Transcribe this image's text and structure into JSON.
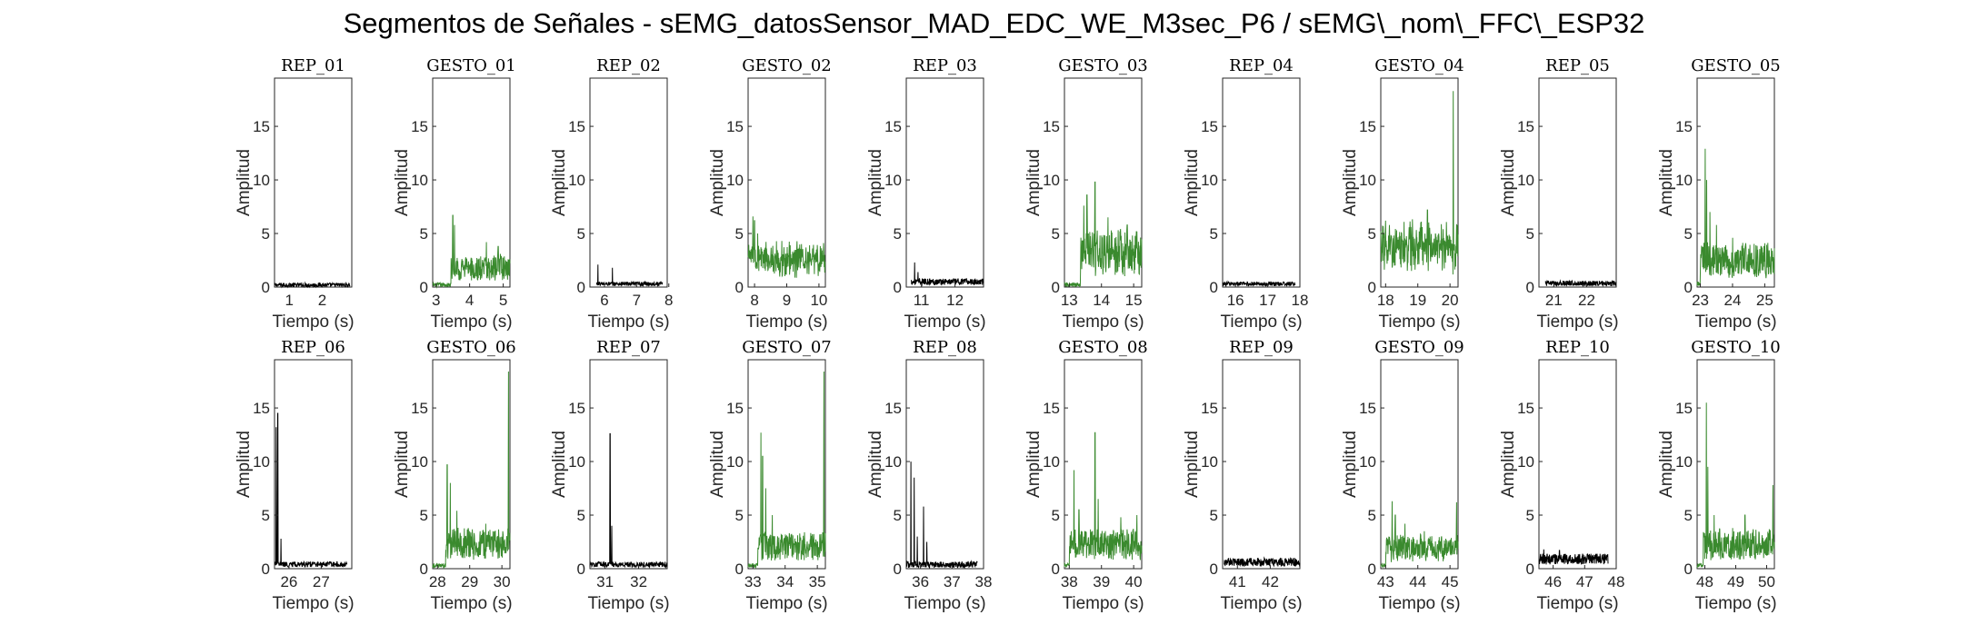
{
  "figure": {
    "suptitle": "Segmentos de Señales - sEMG_datosSensor_MAD_EDC_WE_M3sec_P6 / sEMG\\_nom\\_FFC\\_ESP32"
  },
  "colors": {
    "rep": "#000000",
    "gesto": "#3a8a2e",
    "axes": "#262626"
  },
  "chart_data": [
    {
      "type": "line",
      "title": "REP_01",
      "xlabel": "Tiempo (s)",
      "ylabel": "Amplitud",
      "xlim": [
        0.55,
        2.9
      ],
      "ylim": [
        0,
        19.5
      ],
      "xticks": [
        1,
        2
      ],
      "yticks": [
        0,
        5,
        10,
        15
      ],
      "color": "#000000",
      "x_range": [
        0.55,
        2.85
      ],
      "baseline": 0.2,
      "noise": 0.2,
      "spikes": []
    },
    {
      "type": "line",
      "title": "GESTO_01",
      "xlabel": "Tiempo (s)",
      "ylabel": "Amplitud",
      "xlim": [
        2.9,
        5.2
      ],
      "ylim": [
        0,
        19.5
      ],
      "xticks": [
        3,
        4,
        5
      ],
      "yticks": [
        0,
        5,
        10,
        15
      ],
      "color": "#3a8a2e",
      "x_range": [
        2.9,
        5.2
      ],
      "baseline": 0.2,
      "noise": 0.2,
      "active_from": 3.45,
      "active_level": 1.6,
      "spikes": [
        [
          3.5,
          6.7
        ],
        [
          3.55,
          5.8
        ],
        [
          4.5,
          4.2
        ],
        [
          4.85,
          3.8
        ]
      ]
    },
    {
      "type": "line",
      "title": "REP_02",
      "xlabel": "Tiempo (s)",
      "ylabel": "Amplitud",
      "xlim": [
        5.55,
        7.95
      ],
      "ylim": [
        0,
        19.5
      ],
      "xticks": [
        6,
        7,
        8
      ],
      "yticks": [
        0,
        5,
        10,
        15
      ],
      "color": "#000000",
      "x_range": [
        5.75,
        7.8
      ],
      "baseline": 0.3,
      "noise": 0.2,
      "spikes": [
        [
          5.8,
          2.1
        ],
        [
          6.25,
          1.8
        ]
      ]
    },
    {
      "type": "line",
      "title": "GESTO_02",
      "xlabel": "Tiempo (s)",
      "ylabel": "Amplitud",
      "xlim": [
        7.8,
        10.2
      ],
      "ylim": [
        0,
        19.5
      ],
      "xticks": [
        8,
        9,
        10
      ],
      "yticks": [
        0,
        5,
        10,
        15
      ],
      "color": "#3a8a2e",
      "x_range": [
        7.8,
        10.2
      ],
      "baseline": 1.2,
      "noise": 0.9,
      "active_from": 7.8,
      "active_level": 1.4,
      "spikes": [
        [
          7.95,
          6.6
        ],
        [
          8.0,
          6.2
        ],
        [
          8.1,
          5.0
        ],
        [
          8.3,
          3.5
        ],
        [
          9.8,
          3.6
        ],
        [
          10.15,
          3.2
        ]
      ]
    },
    {
      "type": "line",
      "title": "REP_03",
      "xlabel": "Tiempo (s)",
      "ylabel": "Amplitud",
      "xlim": [
        10.55,
        12.85
      ],
      "ylim": [
        0,
        19.5
      ],
      "xticks": [
        11,
        12
      ],
      "yticks": [
        0,
        5,
        10,
        15
      ],
      "color": "#000000",
      "x_range": [
        10.7,
        12.85
      ],
      "baseline": 0.5,
      "noise": 0.3,
      "spikes": [
        [
          10.8,
          2.3
        ],
        [
          10.9,
          1.4
        ]
      ]
    },
    {
      "type": "line",
      "title": "GESTO_03",
      "xlabel": "Tiempo (s)",
      "ylabel": "Amplitud",
      "xlim": [
        12.85,
        15.25
      ],
      "ylim": [
        0,
        19.5
      ],
      "xticks": [
        13,
        14,
        15
      ],
      "yticks": [
        0,
        5,
        10,
        15
      ],
      "color": "#3a8a2e",
      "x_range": [
        12.85,
        15.25
      ],
      "baseline": 0.2,
      "noise": 0.2,
      "active_from": 13.35,
      "active_level": 3.0,
      "spikes": [
        [
          13.45,
          7.6
        ],
        [
          13.55,
          8.6
        ],
        [
          13.8,
          9.8
        ],
        [
          14.2,
          6.5
        ],
        [
          14.8,
          5.8
        ],
        [
          15.1,
          5.2
        ]
      ]
    },
    {
      "type": "line",
      "title": "REP_04",
      "xlabel": "Tiempo (s)",
      "ylabel": "Amplitud",
      "xlim": [
        15.6,
        18.0
      ],
      "ylim": [
        0,
        19.5
      ],
      "xticks": [
        16,
        17,
        18
      ],
      "yticks": [
        0,
        5,
        10,
        15
      ],
      "color": "#000000",
      "x_range": [
        15.6,
        17.85
      ],
      "baseline": 0.3,
      "noise": 0.2,
      "spikes": []
    },
    {
      "type": "line",
      "title": "GESTO_04",
      "xlabel": "Tiempo (s)",
      "ylabel": "Amplitud",
      "xlim": [
        17.85,
        20.25
      ],
      "ylim": [
        0,
        19.5
      ],
      "xticks": [
        18,
        19,
        20
      ],
      "yticks": [
        0,
        5,
        10,
        15
      ],
      "color": "#3a8a2e",
      "x_range": [
        17.85,
        20.25
      ],
      "baseline": 2.2,
      "noise": 1.6,
      "active_from": 17.85,
      "active_level": 1.6,
      "spikes": [
        [
          18.0,
          6.2
        ],
        [
          18.5,
          5.0
        ],
        [
          19.3,
          7.2
        ],
        [
          19.9,
          4.8
        ],
        [
          20.1,
          18.3
        ]
      ]
    },
    {
      "type": "line",
      "title": "REP_05",
      "xlabel": "Tiempo (s)",
      "ylabel": "Amplitud",
      "xlim": [
        20.55,
        22.9
      ],
      "ylim": [
        0,
        19.5
      ],
      "xticks": [
        21,
        22
      ],
      "yticks": [
        0,
        5,
        10,
        15
      ],
      "color": "#000000",
      "x_range": [
        20.75,
        22.9
      ],
      "baseline": 0.35,
      "noise": 0.25,
      "spikes": []
    },
    {
      "type": "line",
      "title": "GESTO_05",
      "xlabel": "Tiempo (s)",
      "ylabel": "Amplitud",
      "xlim": [
        22.9,
        25.3
      ],
      "ylim": [
        0,
        19.5
      ],
      "xticks": [
        23,
        24,
        25
      ],
      "yticks": [
        0,
        5,
        10,
        15
      ],
      "color": "#3a8a2e",
      "x_range": [
        22.9,
        25.3
      ],
      "baseline": 0.3,
      "noise": 0.2,
      "active_from": 23.0,
      "active_level": 2.2,
      "spikes": [
        [
          23.15,
          12.9
        ],
        [
          23.2,
          10.0
        ],
        [
          23.3,
          7.0
        ],
        [
          23.5,
          5.8
        ],
        [
          24.0,
          4.6
        ],
        [
          24.9,
          3.8
        ]
      ]
    },
    {
      "type": "line",
      "title": "REP_06",
      "xlabel": "Tiempo (s)",
      "ylabel": "Amplitud",
      "xlim": [
        25.55,
        27.95
      ],
      "ylim": [
        0,
        19.5
      ],
      "xticks": [
        26,
        27
      ],
      "yticks": [
        0,
        5,
        10,
        15
      ],
      "color": "#000000",
      "x_range": [
        25.55,
        27.8
      ],
      "baseline": 0.4,
      "noise": 0.25,
      "spikes": [
        [
          25.6,
          13.2
        ],
        [
          25.65,
          14.5
        ],
        [
          25.75,
          2.8
        ]
      ]
    },
    {
      "type": "line",
      "title": "GESTO_06",
      "xlabel": "Tiempo (s)",
      "ylabel": "Amplitud",
      "xlim": [
        27.85,
        30.25
      ],
      "ylim": [
        0,
        19.5
      ],
      "xticks": [
        28,
        29,
        30
      ],
      "yticks": [
        0,
        5,
        10,
        15
      ],
      "color": "#3a8a2e",
      "x_range": [
        27.85,
        30.25
      ],
      "baseline": 0.3,
      "noise": 0.2,
      "active_from": 28.25,
      "active_level": 2.0,
      "spikes": [
        [
          28.3,
          9.7
        ],
        [
          28.4,
          8.0
        ],
        [
          28.6,
          5.4
        ],
        [
          29.5,
          4.2
        ],
        [
          30.2,
          18.4
        ]
      ]
    },
    {
      "type": "line",
      "title": "REP_07",
      "xlabel": "Tiempo (s)",
      "ylabel": "Amplitud",
      "xlim": [
        30.55,
        32.85
      ],
      "ylim": [
        0,
        19.5
      ],
      "xticks": [
        31,
        32
      ],
      "yticks": [
        0,
        5,
        10,
        15
      ],
      "color": "#000000",
      "x_range": [
        30.55,
        32.85
      ],
      "baseline": 0.4,
      "noise": 0.25,
      "spikes": [
        [
          31.15,
          12.6
        ],
        [
          31.2,
          4.0
        ]
      ]
    },
    {
      "type": "line",
      "title": "GESTO_07",
      "xlabel": "Tiempo (s)",
      "ylabel": "Amplitud",
      "xlim": [
        32.85,
        35.25
      ],
      "ylim": [
        0,
        19.5
      ],
      "xticks": [
        33,
        34,
        35
      ],
      "yticks": [
        0,
        5,
        10,
        15
      ],
      "color": "#3a8a2e",
      "x_range": [
        32.85,
        35.25
      ],
      "baseline": 0.3,
      "noise": 0.2,
      "active_from": 33.15,
      "active_level": 1.8,
      "spikes": [
        [
          33.25,
          12.7
        ],
        [
          33.3,
          10.5
        ],
        [
          33.4,
          7.5
        ],
        [
          33.6,
          5.0
        ],
        [
          34.6,
          3.4
        ],
        [
          35.2,
          18.4
        ]
      ]
    },
    {
      "type": "line",
      "title": "REP_08",
      "xlabel": "Tiempo (s)",
      "ylabel": "Amplitud",
      "xlim": [
        35.55,
        38.0
      ],
      "ylim": [
        0,
        19.5
      ],
      "xticks": [
        36,
        37,
        38
      ],
      "yticks": [
        0,
        5,
        10,
        15
      ],
      "color": "#000000",
      "x_range": [
        35.55,
        37.8
      ],
      "baseline": 0.4,
      "noise": 0.3,
      "spikes": [
        [
          35.7,
          10.0
        ],
        [
          35.8,
          8.5
        ],
        [
          35.9,
          3.0
        ],
        [
          36.1,
          5.8
        ],
        [
          36.2,
          2.5
        ]
      ]
    },
    {
      "type": "line",
      "title": "GESTO_08",
      "xlabel": "Tiempo (s)",
      "ylabel": "Amplitud",
      "xlim": [
        37.85,
        40.25
      ],
      "ylim": [
        0,
        19.5
      ],
      "xticks": [
        38,
        39,
        40
      ],
      "yticks": [
        0,
        5,
        10,
        15
      ],
      "color": "#3a8a2e",
      "x_range": [
        37.85,
        40.25
      ],
      "baseline": 0.3,
      "noise": 0.2,
      "active_from": 38.0,
      "active_level": 2.0,
      "spikes": [
        [
          38.15,
          9.2
        ],
        [
          38.3,
          5.5
        ],
        [
          38.8,
          12.7
        ],
        [
          38.9,
          6.5
        ],
        [
          39.6,
          4.8
        ],
        [
          40.1,
          5.0
        ]
      ]
    },
    {
      "type": "line",
      "title": "REP_09",
      "xlabel": "Tiempo (s)",
      "ylabel": "Amplitud",
      "xlim": [
        40.55,
        42.9
      ],
      "ylim": [
        0,
        19.5
      ],
      "xticks": [
        41,
        42
      ],
      "yticks": [
        0,
        5,
        10,
        15
      ],
      "color": "#000000",
      "x_range": [
        40.6,
        42.9
      ],
      "baseline": 0.6,
      "noise": 0.4,
      "spikes": []
    },
    {
      "type": "line",
      "title": "GESTO_09",
      "xlabel": "Tiempo (s)",
      "ylabel": "Amplitud",
      "xlim": [
        42.85,
        45.25
      ],
      "ylim": [
        0,
        19.5
      ],
      "xticks": [
        43,
        44,
        45
      ],
      "yticks": [
        0,
        5,
        10,
        15
      ],
      "color": "#3a8a2e",
      "x_range": [
        42.85,
        45.25
      ],
      "baseline": 0.3,
      "noise": 0.2,
      "active_from": 43.0,
      "active_level": 1.6,
      "spikes": [
        [
          43.2,
          6.3
        ],
        [
          43.3,
          5.0
        ],
        [
          43.6,
          4.2
        ],
        [
          44.2,
          3.5
        ],
        [
          45.2,
          6.2
        ]
      ]
    },
    {
      "type": "line",
      "title": "REP_10",
      "xlabel": "Tiempo (s)",
      "ylabel": "Amplitud",
      "xlim": [
        45.55,
        48.0
      ],
      "ylim": [
        0,
        19.5
      ],
      "xticks": [
        46,
        47,
        48
      ],
      "yticks": [
        0,
        5,
        10,
        15
      ],
      "color": "#000000",
      "x_range": [
        45.55,
        47.75
      ],
      "baseline": 0.9,
      "noise": 0.5,
      "spikes": [
        [
          45.7,
          1.8
        ],
        [
          46.2,
          1.7
        ]
      ]
    },
    {
      "type": "line",
      "title": "GESTO_10",
      "xlabel": "Tiempo (s)",
      "ylabel": "Amplitud",
      "xlim": [
        47.75,
        50.25
      ],
      "ylim": [
        0,
        19.5
      ],
      "xticks": [
        48,
        49,
        50
      ],
      "yticks": [
        0,
        5,
        10,
        15
      ],
      "color": "#3a8a2e",
      "x_range": [
        47.75,
        50.25
      ],
      "baseline": 0.3,
      "noise": 0.2,
      "active_from": 47.95,
      "active_level": 2.0,
      "spikes": [
        [
          48.05,
          15.5
        ],
        [
          48.1,
          9.5
        ],
        [
          48.3,
          5.0
        ],
        [
          49.3,
          5.0
        ],
        [
          50.2,
          7.8
        ]
      ]
    }
  ]
}
